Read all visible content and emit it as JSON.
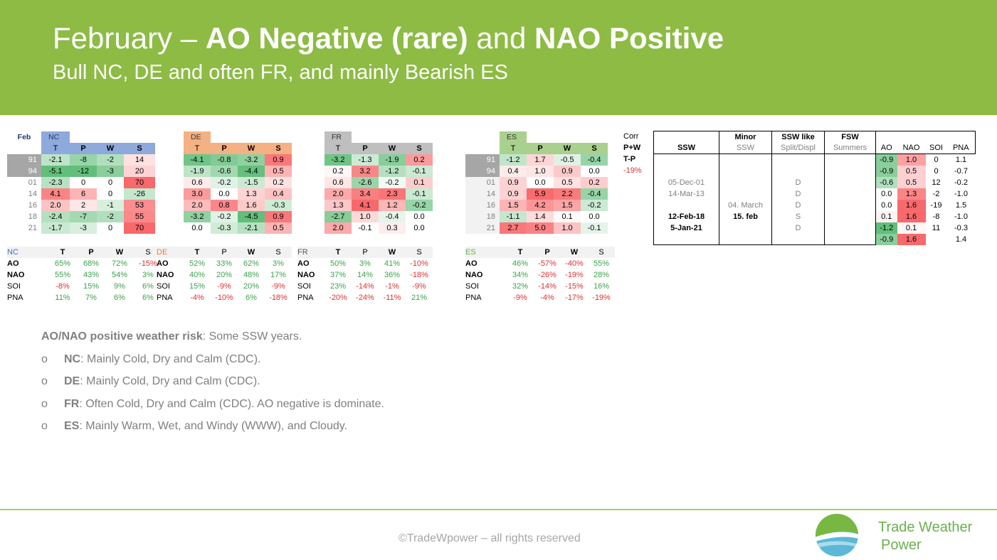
{
  "header": {
    "title_a": "February – ",
    "title_b": "AO Negative (rare)",
    "title_c": " and ",
    "title_d": "NAO Positive",
    "subtitle": "Bull NC, DE and often FR, and mainly Bearish ES"
  },
  "colors": {
    "banner": "#8dbb44",
    "nc": "#8ea9db",
    "de": "#f4b183",
    "fr": "#bfbfbf",
    "es": "#a9d08e"
  },
  "years": [
    "91",
    "94",
    "01",
    "14",
    "16",
    "18",
    "21"
  ],
  "row_label": "Feb",
  "regions": [
    {
      "name": "NC",
      "cols": [
        "T",
        "P",
        "W",
        "S"
      ],
      "rows": [
        [
          "-2.1",
          "-8",
          "-2",
          "14"
        ],
        [
          "-5.1",
          "-12",
          "-3",
          "20"
        ],
        [
          "-2.3",
          "0",
          "0",
          "70"
        ],
        [
          "4.1",
          "6",
          "0",
          "-26"
        ],
        [
          "2.0",
          "2",
          "-1",
          "53"
        ],
        [
          "-2.4",
          "-7",
          "-2",
          "55"
        ],
        [
          "-1.7",
          "-3",
          "0",
          "70"
        ]
      ]
    },
    {
      "name": "DE",
      "cols": [
        "T",
        "P",
        "W",
        "S"
      ],
      "rows": [
        [
          "-4.1",
          "-0.8",
          "-3.2",
          "0.9"
        ],
        [
          "-1.9",
          "-0.6",
          "-4.4",
          "0.5"
        ],
        [
          "0.6",
          "-0.2",
          "-1.5",
          "0.2"
        ],
        [
          "3.0",
          "0.0",
          "1.3",
          "0.4"
        ],
        [
          "2.0",
          "0.8",
          "1.6",
          "-0.3"
        ],
        [
          "-3.2",
          "-0.2",
          "-4.5",
          "0.9"
        ],
        [
          "0.0",
          "-0.3",
          "-2.1",
          "0.5"
        ]
      ]
    },
    {
      "name": "FR",
      "cols": [
        "T",
        "P",
        "W",
        "S"
      ],
      "rows": [
        [
          "-3.2",
          "-1.3",
          "-1.9",
          "0.2"
        ],
        [
          "0.2",
          "3.2",
          "-1.2",
          "-0.1"
        ],
        [
          "0.6",
          "-2.6",
          "-0.2",
          "0.1"
        ],
        [
          "2.0",
          "3.4",
          "2.3",
          "-0.1"
        ],
        [
          "1.3",
          "4.1",
          "1.2",
          "-0.2"
        ],
        [
          "-2.7",
          "1.0",
          "-0.4",
          "0.0"
        ],
        [
          "2.0",
          "-0.1",
          "0.3",
          "0.0"
        ]
      ]
    },
    {
      "name": "ES",
      "cols": [
        "T",
        "P",
        "W",
        "S"
      ],
      "rows": [
        [
          "-1.2",
          "1.7",
          "-0.5",
          "-0.4"
        ],
        [
          "0.4",
          "1.0",
          "0.9",
          "0.0"
        ],
        [
          "0.9",
          "0.0",
          "0.5",
          "0.2"
        ],
        [
          "0.9",
          "5.9",
          "2.2",
          "-0.4"
        ],
        [
          "1.5",
          "4.2",
          "1.5",
          "-0.2"
        ],
        [
          "-1.1",
          "1.4",
          "0.1",
          "0.0"
        ],
        [
          "2.7",
          "5.0",
          "1.0",
          "-0.1"
        ]
      ]
    }
  ],
  "corr": {
    "cols": [
      "T",
      "P",
      "W",
      "S"
    ],
    "regions": [
      {
        "name": "NC",
        "rows": [
          [
            "AO",
            "65%",
            "68%",
            "72%",
            "-15%"
          ],
          [
            "NAO",
            "55%",
            "43%",
            "54%",
            "3%"
          ],
          [
            "SOI",
            "-8%",
            "15%",
            "9%",
            "6%"
          ],
          [
            "PNA",
            "11%",
            "7%",
            "6%",
            "6%"
          ]
        ]
      },
      {
        "name": "DE",
        "rows": [
          [
            "AO",
            "52%",
            "33%",
            "62%",
            "3%"
          ],
          [
            "NAO",
            "40%",
            "20%",
            "48%",
            "17%"
          ],
          [
            "SOI",
            "15%",
            "-9%",
            "20%",
            "-9%"
          ],
          [
            "PNA",
            "-4%",
            "-10%",
            "6%",
            "-18%"
          ]
        ]
      },
      {
        "name": "FR",
        "rows": [
          [
            "AO",
            "50%",
            "3%",
            "41%",
            "-10%"
          ],
          [
            "NAO",
            "37%",
            "14%",
            "36%",
            "-18%"
          ],
          [
            "SOI",
            "23%",
            "-14%",
            "-1%",
            "-9%"
          ],
          [
            "PNA",
            "-20%",
            "-24%",
            "-11%",
            "21%"
          ]
        ]
      },
      {
        "name": "ES",
        "rows": [
          [
            "AO",
            "46%",
            "-57%",
            "-40%",
            "55%"
          ],
          [
            "NAO",
            "34%",
            "-26%",
            "-19%",
            "28%"
          ],
          [
            "SOI",
            "32%",
            "-14%",
            "-15%",
            "16%"
          ],
          [
            "PNA",
            "-9%",
            "-4%",
            "-17%",
            "-19%"
          ]
        ]
      }
    ]
  },
  "pw_corr": {
    "label1": "Corr",
    "label2": "P+W",
    "label3": "T-P",
    "value": "-19%"
  },
  "ssw_table": {
    "headers1": [
      "",
      "Minor",
      "SSW like",
      "FSW",
      "",
      "",
      "",
      ""
    ],
    "headers2": [
      "SSW",
      "SSW",
      "Split/Displ",
      "Summers",
      "AO",
      "NAO",
      "SOI",
      "PNA"
    ],
    "rows": [
      [
        "",
        "",
        "",
        "",
        "-0.9",
        "1.0",
        "0",
        "1.1"
      ],
      [
        "",
        "",
        "",
        "",
        "-0.9",
        "0.5",
        "0",
        "-0.7"
      ],
      [
        "05-Dec-01",
        "",
        "D",
        "",
        "-0.6",
        "0.5",
        "12",
        "-0.2"
      ],
      [
        "14-Mar-13",
        "",
        "D",
        "",
        "0.0",
        "1.3",
        "-2",
        "-1.0"
      ],
      [
        "",
        "04. March",
        "D",
        "",
        "0.0",
        "1.6",
        "-19",
        "1.5"
      ],
      [
        "12-Feb-18",
        "15. feb",
        "S",
        "",
        "0.1",
        "1.6",
        "-8",
        "-1.0"
      ],
      [
        "5-Jan-21",
        "",
        "D",
        "",
        "-1.2",
        "0.1",
        "11",
        "-0.3"
      ],
      [
        "",
        "",
        "",
        "",
        "-0.9",
        "1.6",
        "",
        "1.4"
      ]
    ]
  },
  "notes": {
    "risk_label": "AO/NAO positive weather risk",
    "risk_text": ": Some SSW years.",
    "bullet": "o",
    "items": [
      {
        "k": "NC",
        "t": ": Mainly Cold, Dry and Calm (CDC)."
      },
      {
        "k": "DE",
        "t": ": Mainly Cold, Dry and Calm (CDC)."
      },
      {
        "k": "FR",
        "t": ": Often Cold, Dry and Calm (CDC). AO negative is dominate."
      },
      {
        "k": "ES",
        "t": ": Mainly Warm, Wet, and Windy (WWW), and Cloudy."
      }
    ]
  },
  "footer": {
    "copyright": "©TradeWpower – all rights reserved",
    "brand1": "Trade Weather",
    "brand2": "Power"
  }
}
